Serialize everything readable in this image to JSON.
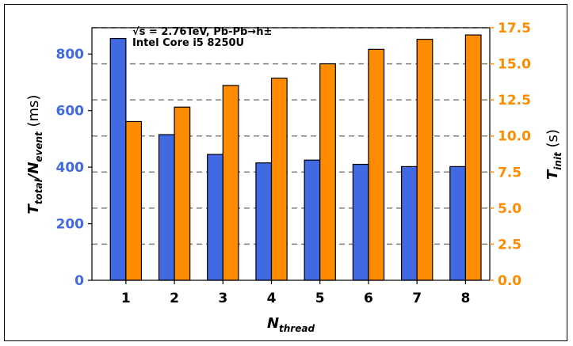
{
  "chart_data": {
    "type": "bar",
    "categories": [
      "1",
      "2",
      "3",
      "4",
      "5",
      "6",
      "7",
      "8"
    ],
    "xlabel_base": "N",
    "xlabel_sub": "thread",
    "ylabel_left": {
      "base1": "T",
      "sub1": "total",
      "sep": "/",
      "base2": "N",
      "sub2": "event",
      "unit": " (ms)"
    },
    "ylabel_right": {
      "base": "T",
      "sub": "init",
      "unit": " (s)"
    },
    "annotation_line1": "√s = 2.76TeV, Pb-Pb→h±",
    "annotation_line2": "Intel Core i5 8250U",
    "ylim_left": [
      0,
      893
    ],
    "ylim_right": [
      0,
      17.5
    ],
    "yticks_left": [
      "0",
      "200",
      "400",
      "600",
      "800"
    ],
    "yticks_right": [
      "0.0",
      "2.5",
      "5.0",
      "7.5",
      "10.0",
      "12.5",
      "15.0",
      "17.5"
    ],
    "grid": "horizontal dashed at right-axis ticks",
    "series": [
      {
        "axis": "left",
        "color": "#4169e1",
        "values": [
          855,
          515,
          445,
          415,
          425,
          410,
          402,
          402
        ]
      },
      {
        "axis": "right",
        "color": "#ff8c00",
        "values": [
          11.0,
          12.0,
          13.5,
          14.0,
          15.0,
          16.0,
          16.7,
          17.0
        ]
      }
    ],
    "colors": {
      "left_axis": "#4169e1",
      "right_axis": "#ff8c00",
      "grid": "#808080"
    }
  }
}
